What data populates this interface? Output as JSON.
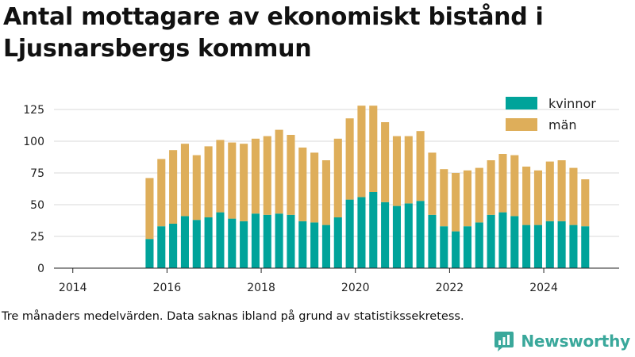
{
  "header": {
    "title": "Antal mottagare av ekonomiskt bistånd i Ljusnarsbergs kommun"
  },
  "footer": {
    "caption": "Tre månaders medelvärden. Data saknas ibland på grund av statistikssekretess.",
    "brand": "Newsworthy"
  },
  "colors": {
    "kvinnor": "#00a39a",
    "man": "#deae5a",
    "grid": "#d9d9d9",
    "brand": "#3aa89b"
  },
  "icons": {
    "brand_logo": "newsworthy-chat-bar-icon"
  },
  "chart_data": {
    "type": "bar",
    "stacked": true,
    "title": "Antal mottagare av ekonomiskt bistånd i Ljusnarsbergs kommun",
    "xlabel": "",
    "ylabel": "",
    "ylim": [
      0,
      130
    ],
    "xlim": [
      2013.6,
      2025.6
    ],
    "yticks": [
      0,
      25,
      50,
      75,
      100,
      125
    ],
    "xticks": [
      2014,
      2016,
      2018,
      2020,
      2022,
      2024
    ],
    "grid": "horizontal",
    "legend_position": "top-right",
    "x": [
      2015.63,
      2015.88,
      2016.13,
      2016.38,
      2016.63,
      2016.88,
      2017.13,
      2017.38,
      2017.63,
      2017.88,
      2018.13,
      2018.38,
      2018.63,
      2018.88,
      2019.13,
      2019.38,
      2019.63,
      2019.88,
      2020.13,
      2020.38,
      2020.63,
      2020.88,
      2021.13,
      2021.38,
      2021.63,
      2021.88,
      2022.13,
      2022.38,
      2022.63,
      2022.88,
      2023.13,
      2023.38,
      2023.63,
      2023.88,
      2024.13,
      2024.38,
      2024.63,
      2024.88
    ],
    "series": [
      {
        "name": "kvinnor",
        "color": "#00a39a",
        "values": [
          23,
          33,
          35,
          41,
          38,
          40,
          44,
          39,
          37,
          43,
          42,
          43,
          42,
          37,
          36,
          34,
          40,
          54,
          56,
          60,
          52,
          49,
          51,
          53,
          42,
          33,
          29,
          33,
          36,
          42,
          44,
          41,
          34,
          34,
          37,
          37,
          34,
          33
        ]
      },
      {
        "name": "män",
        "color": "#deae5a",
        "values": [
          48,
          53,
          58,
          57,
          51,
          56,
          57,
          60,
          61,
          59,
          62,
          66,
          63,
          58,
          55,
          51,
          62,
          64,
          72,
          68,
          63,
          55,
          53,
          55,
          49,
          45,
          46,
          44,
          43,
          43,
          46,
          48,
          46,
          43,
          47,
          48,
          45,
          37
        ]
      }
    ]
  }
}
